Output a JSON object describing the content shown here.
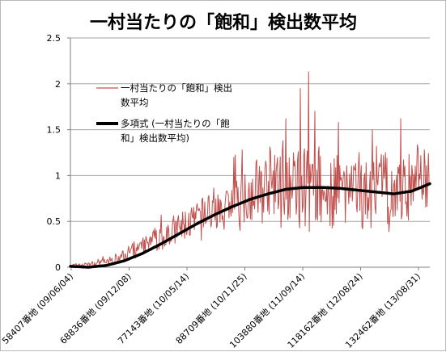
{
  "chart_data": {
    "type": "line",
    "title": "一村当たりの「飽和」検出数平均",
    "xlabel": "",
    "ylabel": "",
    "ylim": [
      0,
      2.5
    ],
    "yticks": [
      "0",
      "0.5",
      "1",
      "1.5",
      "2",
      "2.5"
    ],
    "xtick_labels": [
      "58407番地 (09/06/04)",
      "68836番地 (09/12/08)",
      "77143番地 (10/05/14)",
      "88709番地 (10/11/25)",
      "103880番地 (11/09/14)",
      "118162番地 (12/08/24)",
      "132462番地 (13/08/31)"
    ],
    "grid": true,
    "legend_position": "upper-left inside plot",
    "series": [
      {
        "name": "一村当たりの「飽和」検出数平均",
        "color": "#c0504d",
        "style": "thin",
        "anchors_value": [
          [
            0.0,
            0.02
          ],
          [
            0.06,
            0.03
          ],
          [
            0.12,
            0.08
          ],
          [
            0.18,
            0.18
          ],
          [
            0.25,
            0.32
          ],
          [
            0.32,
            0.45
          ],
          [
            0.4,
            0.62
          ],
          [
            0.48,
            0.78
          ],
          [
            0.54,
            0.86
          ],
          [
            0.6,
            0.92
          ],
          [
            0.66,
            0.9
          ],
          [
            0.72,
            0.82
          ],
          [
            0.78,
            0.8
          ],
          [
            0.84,
            0.82
          ],
          [
            0.9,
            0.84
          ],
          [
            0.95,
            0.86
          ],
          [
            1.0,
            0.9
          ]
        ],
        "noise_amplitude": [
          [
            0.0,
            0.02
          ],
          [
            0.1,
            0.05
          ],
          [
            0.2,
            0.12
          ],
          [
            0.3,
            0.22
          ],
          [
            0.45,
            0.35
          ],
          [
            0.6,
            0.55
          ],
          [
            0.75,
            0.5
          ],
          [
            0.9,
            0.55
          ],
          [
            1.0,
            0.5
          ]
        ],
        "peaks": [
          {
            "pos": 0.663,
            "value": 2.13
          },
          {
            "pos": 0.64,
            "value": 1.95
          },
          {
            "pos": 0.6,
            "value": 1.62
          },
          {
            "pos": 0.68,
            "value": 1.7
          },
          {
            "pos": 0.478,
            "value": 1.28
          },
          {
            "pos": 0.455,
            "value": 1.2
          },
          {
            "pos": 0.985,
            "value": 1.28
          },
          {
            "pos": 0.745,
            "value": 1.58
          },
          {
            "pos": 0.84,
            "value": 1.5
          },
          {
            "pos": 0.92,
            "value": 1.62
          }
        ],
        "point_count": 520
      },
      {
        "name": "多項式 (一村当たりの「飽和」検出数平均)",
        "color": "#000000",
        "style": "thick",
        "anchors_value": [
          [
            0.0,
            0.01
          ],
          [
            0.05,
            0.0
          ],
          [
            0.1,
            0.02
          ],
          [
            0.15,
            0.07
          ],
          [
            0.2,
            0.15
          ],
          [
            0.25,
            0.25
          ],
          [
            0.3,
            0.36
          ],
          [
            0.35,
            0.47
          ],
          [
            0.4,
            0.57
          ],
          [
            0.45,
            0.66
          ],
          [
            0.5,
            0.74
          ],
          [
            0.55,
            0.8
          ],
          [
            0.6,
            0.85
          ],
          [
            0.65,
            0.87
          ],
          [
            0.7,
            0.87
          ],
          [
            0.75,
            0.86
          ],
          [
            0.8,
            0.84
          ],
          [
            0.85,
            0.82
          ],
          [
            0.9,
            0.8
          ],
          [
            0.95,
            0.83
          ],
          [
            1.0,
            0.91
          ]
        ]
      }
    ],
    "legend_lines": [
      [
        "一村当たりの「飽和」検出",
        "数平均"
      ],
      [
        "多項式 (一村当たりの「飽",
        "和」検出数平均)"
      ]
    ]
  }
}
